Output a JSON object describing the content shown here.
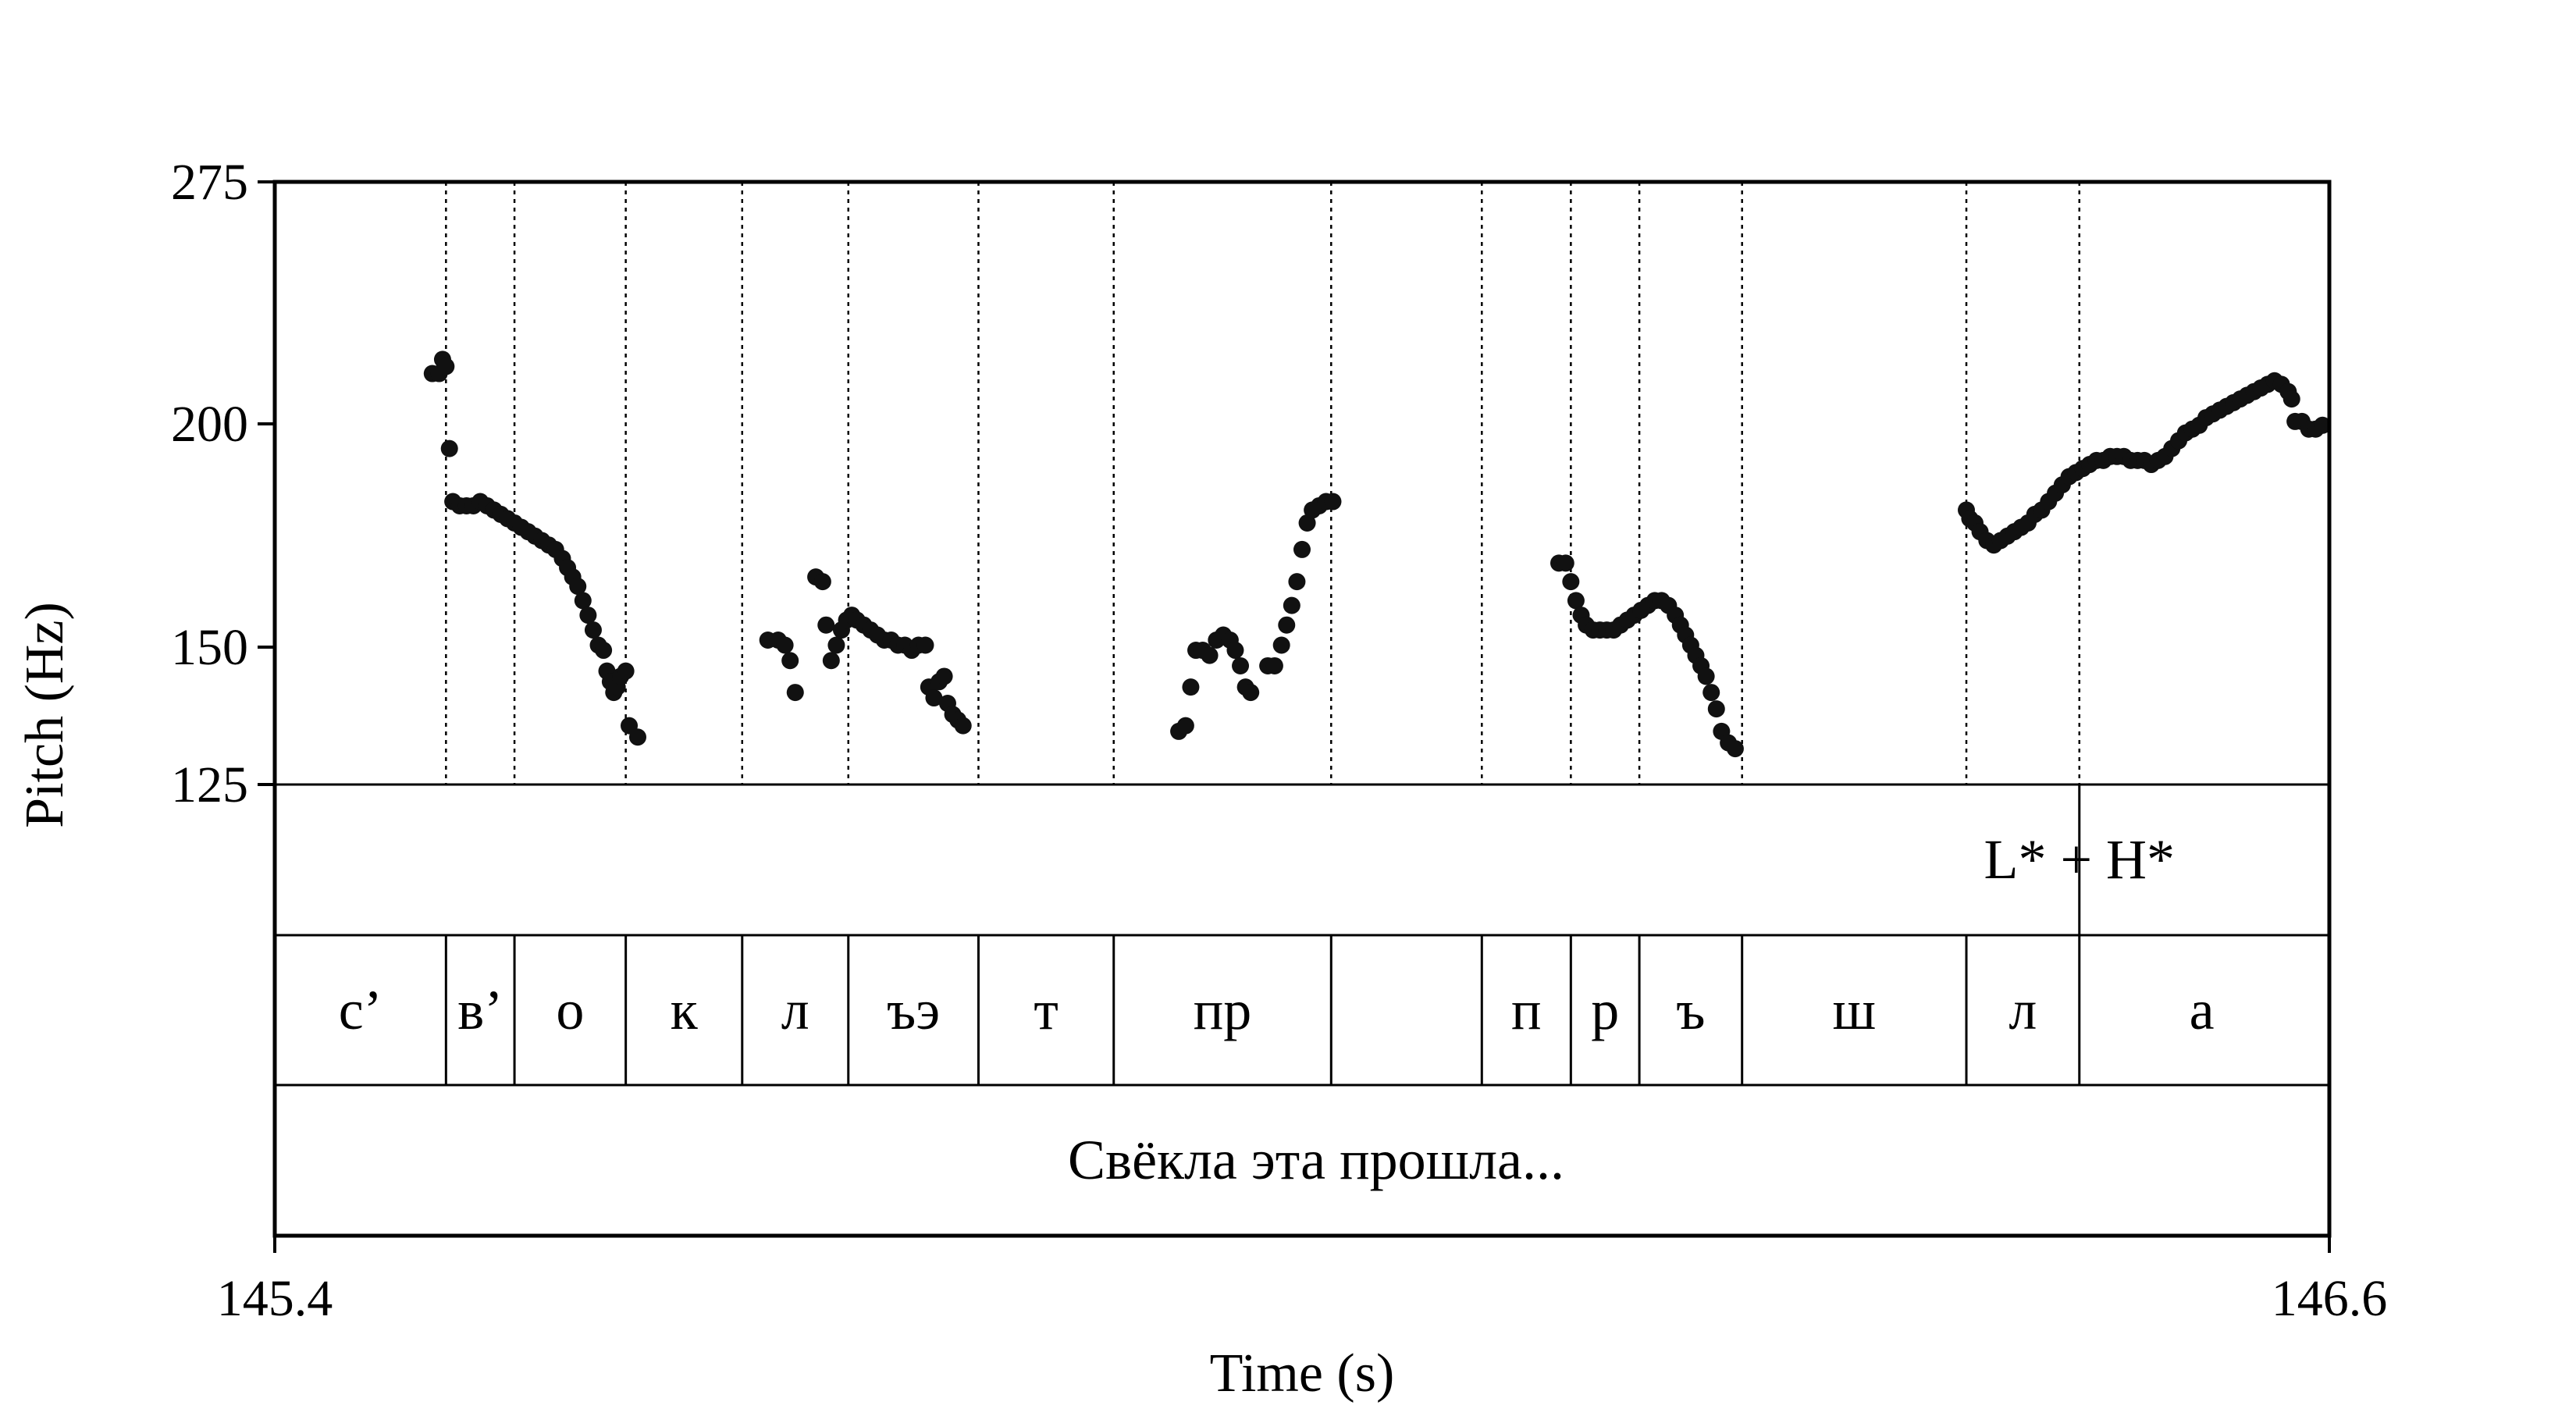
{
  "chart_data": {
    "type": "scatter",
    "ylabel": "Pitch (Hz)",
    "xlabel": "Time (s)",
    "xlim": [
      145.4,
      146.6
    ],
    "ylim": [
      125,
      275
    ],
    "x_ticks": [
      "145.4",
      "146.6"
    ],
    "y_ticks": [
      "275",
      "200",
      "150",
      "125"
    ],
    "y_scale": "log",
    "segment_boundaries": [
      145.4,
      145.5,
      145.54,
      145.605,
      145.673,
      145.735,
      145.811,
      145.89,
      146.017,
      146.105,
      146.157,
      146.197,
      146.257,
      146.388,
      146.454,
      146.597
    ],
    "tone_tier": {
      "label": "L* + H*",
      "boundary": 146.454
    },
    "phone_tier": [
      "с’",
      "в’",
      "о",
      "к",
      "л",
      "ъэ",
      "т",
      "пр",
      "",
      "п",
      "р",
      "ъ",
      "ш",
      "л",
      "а"
    ],
    "word_tier": "Свёкла эта прошла...",
    "points": [
      [
        145.492,
        214
      ],
      [
        145.496,
        214
      ],
      [
        145.498,
        218
      ],
      [
        145.5,
        216
      ],
      [
        145.502,
        194
      ],
      [
        145.504,
        181
      ],
      [
        145.508,
        180
      ],
      [
        145.512,
        180
      ],
      [
        145.516,
        180
      ],
      [
        145.52,
        181
      ],
      [
        145.524,
        180
      ],
      [
        145.528,
        179
      ],
      [
        145.532,
        178
      ],
      [
        145.536,
        177
      ],
      [
        145.54,
        176
      ],
      [
        145.544,
        175
      ],
      [
        145.548,
        174
      ],
      [
        145.552,
        173
      ],
      [
        145.556,
        172
      ],
      [
        145.56,
        171
      ],
      [
        145.564,
        170
      ],
      [
        145.568,
        168
      ],
      [
        145.571,
        166
      ],
      [
        145.574,
        164
      ],
      [
        145.577,
        162
      ],
      [
        145.58,
        159
      ],
      [
        145.583,
        156
      ],
      [
        145.586,
        153
      ],
      [
        145.589,
        150
      ],
      [
        145.592,
        149
      ],
      [
        145.594,
        145
      ],
      [
        145.596,
        143
      ],
      [
        145.598,
        141
      ],
      [
        145.6,
        142
      ],
      [
        145.602,
        144
      ],
      [
        145.605,
        145
      ],
      [
        145.607,
        135
      ],
      [
        145.612,
        133
      ],
      [
        145.688,
        151
      ],
      [
        145.694,
        151
      ],
      [
        145.698,
        150
      ],
      [
        145.701,
        147
      ],
      [
        145.704,
        141
      ],
      [
        145.716,
        164
      ],
      [
        145.72,
        163
      ],
      [
        145.722,
        154
      ],
      [
        145.725,
        147
      ],
      [
        145.728,
        150
      ],
      [
        145.731,
        153
      ],
      [
        145.734,
        155
      ],
      [
        145.737,
        156
      ],
      [
        145.74,
        155
      ],
      [
        145.744,
        154
      ],
      [
        145.748,
        153
      ],
      [
        145.752,
        152
      ],
      [
        145.756,
        151
      ],
      [
        145.76,
        151
      ],
      [
        145.764,
        150
      ],
      [
        145.768,
        150
      ],
      [
        145.772,
        149
      ],
      [
        145.776,
        150
      ],
      [
        145.78,
        150
      ],
      [
        145.782,
        142
      ],
      [
        145.785,
        140
      ],
      [
        145.788,
        143
      ],
      [
        145.791,
        144
      ],
      [
        145.793,
        139
      ],
      [
        145.796,
        137
      ],
      [
        145.799,
        136
      ],
      [
        145.802,
        135
      ],
      [
        145.928,
        134
      ],
      [
        145.932,
        135
      ],
      [
        145.935,
        142
      ],
      [
        145.938,
        149
      ],
      [
        145.942,
        149
      ],
      [
        145.946,
        148
      ],
      [
        145.95,
        151
      ],
      [
        145.954,
        152
      ],
      [
        145.958,
        151
      ],
      [
        145.961,
        149
      ],
      [
        145.964,
        146
      ],
      [
        145.967,
        142
      ],
      [
        145.97,
        141
      ],
      [
        145.98,
        146
      ],
      [
        145.984,
        146
      ],
      [
        145.988,
        150
      ],
      [
        145.991,
        154
      ],
      [
        145.994,
        158
      ],
      [
        145.997,
        163
      ],
      [
        146.0,
        170
      ],
      [
        146.003,
        176
      ],
      [
        146.006,
        179
      ],
      [
        146.01,
        180
      ],
      [
        146.014,
        181
      ],
      [
        146.018,
        181
      ],
      [
        146.15,
        167
      ],
      [
        146.154,
        167
      ],
      [
        146.157,
        163
      ],
      [
        146.16,
        159
      ],
      [
        146.163,
        156
      ],
      [
        146.166,
        154
      ],
      [
        146.17,
        153
      ],
      [
        146.174,
        153
      ],
      [
        146.178,
        153
      ],
      [
        146.182,
        153
      ],
      [
        146.186,
        154
      ],
      [
        146.19,
        155
      ],
      [
        146.194,
        156
      ],
      [
        146.198,
        157
      ],
      [
        146.202,
        158
      ],
      [
        146.206,
        159
      ],
      [
        146.21,
        159
      ],
      [
        146.214,
        158
      ],
      [
        146.218,
        156
      ],
      [
        146.221,
        154
      ],
      [
        146.224,
        152
      ],
      [
        146.227,
        150
      ],
      [
        146.23,
        148
      ],
      [
        146.233,
        146
      ],
      [
        146.236,
        144
      ],
      [
        146.239,
        141
      ],
      [
        146.242,
        138
      ],
      [
        146.245,
        134
      ],
      [
        146.249,
        132
      ],
      [
        146.253,
        131
      ],
      [
        146.388,
        179
      ],
      [
        146.39,
        177
      ],
      [
        146.393,
        176
      ],
      [
        146.396,
        174
      ],
      [
        146.4,
        172
      ],
      [
        146.404,
        171
      ],
      [
        146.408,
        172
      ],
      [
        146.412,
        173
      ],
      [
        146.416,
        174
      ],
      [
        146.42,
        175
      ],
      [
        146.424,
        176
      ],
      [
        146.428,
        178
      ],
      [
        146.432,
        179
      ],
      [
        146.436,
        181
      ],
      [
        146.44,
        183
      ],
      [
        146.444,
        185
      ],
      [
        146.448,
        187
      ],
      [
        146.452,
        188
      ],
      [
        146.456,
        189
      ],
      [
        146.46,
        190
      ],
      [
        146.464,
        191
      ],
      [
        146.468,
        191
      ],
      [
        146.472,
        192
      ],
      [
        146.476,
        192
      ],
      [
        146.48,
        192
      ],
      [
        146.484,
        191
      ],
      [
        146.488,
        191
      ],
      [
        146.492,
        191
      ],
      [
        146.496,
        190
      ],
      [
        146.5,
        191
      ],
      [
        146.504,
        192
      ],
      [
        146.508,
        194
      ],
      [
        146.512,
        196
      ],
      [
        146.516,
        198
      ],
      [
        146.52,
        199
      ],
      [
        146.524,
        200
      ],
      [
        146.528,
        202
      ],
      [
        146.532,
        203
      ],
      [
        146.536,
        204
      ],
      [
        146.54,
        205
      ],
      [
        146.544,
        206
      ],
      [
        146.548,
        207
      ],
      [
        146.552,
        208
      ],
      [
        146.556,
        209
      ],
      [
        146.56,
        210
      ],
      [
        146.564,
        211
      ],
      [
        146.568,
        212
      ],
      [
        146.572,
        211
      ],
      [
        146.576,
        209
      ],
      [
        146.578,
        207
      ],
      [
        146.58,
        201
      ],
      [
        146.584,
        201
      ],
      [
        146.588,
        199
      ],
      [
        146.592,
        199
      ],
      [
        146.596,
        200
      ]
    ]
  }
}
